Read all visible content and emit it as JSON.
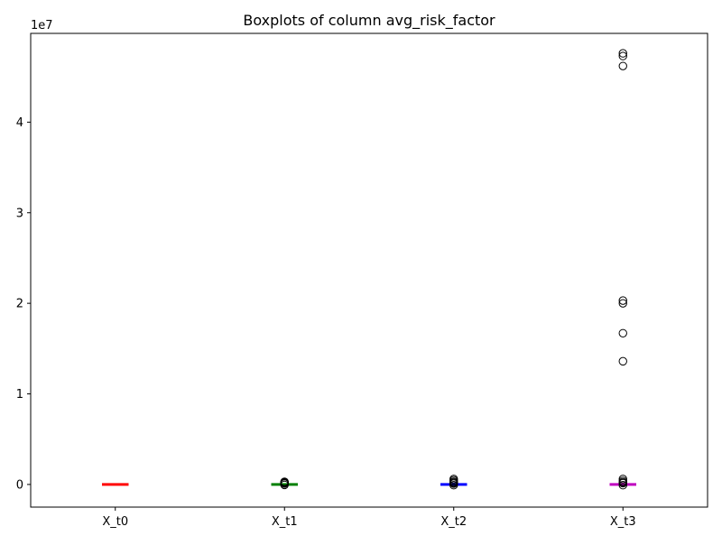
{
  "chart_data": {
    "type": "boxplot",
    "title": "Boxplots of column avg_risk_factor",
    "xlabel": "",
    "ylabel": "",
    "y_scale_label": "1e7",
    "y_scale": 10000000,
    "ylim": [
      -2500000,
      49800000
    ],
    "yticks": [
      0,
      10000000,
      20000000,
      30000000,
      40000000
    ],
    "ytick_labels": [
      "0",
      "1",
      "2",
      "3",
      "4"
    ],
    "grid": false,
    "categories": [
      "X_t0",
      "X_t1",
      "X_t2",
      "X_t3"
    ],
    "series": [
      {
        "category": "X_t0",
        "color": "#ff0000",
        "whisker_low": -20000,
        "q1": -10000,
        "median": 0,
        "q3": 10000,
        "whisker_high": 20000,
        "outliers": []
      },
      {
        "category": "X_t1",
        "color": "#008000",
        "whisker_low": -30000,
        "q1": -15000,
        "median": 0,
        "q3": 15000,
        "whisker_high": 30000,
        "outliers": [
          100000,
          150000,
          200000,
          250000,
          300000,
          -50000
        ]
      },
      {
        "category": "X_t2",
        "color": "#0000ff",
        "whisker_low": -40000,
        "q1": -20000,
        "median": 0,
        "q3": 20000,
        "whisker_high": 40000,
        "outliers": [
          600000,
          450000,
          300000,
          200000,
          100000,
          -80000
        ]
      },
      {
        "category": "X_t3",
        "color": "#bf00bf",
        "whisker_low": -50000,
        "q1": -25000,
        "median": 0,
        "q3": 25000,
        "whisker_high": 50000,
        "outliers": [
          47600000,
          47300000,
          46200000,
          20300000,
          20000000,
          16700000,
          13600000,
          600000,
          400000,
          250000,
          150000,
          -80000
        ]
      }
    ]
  }
}
